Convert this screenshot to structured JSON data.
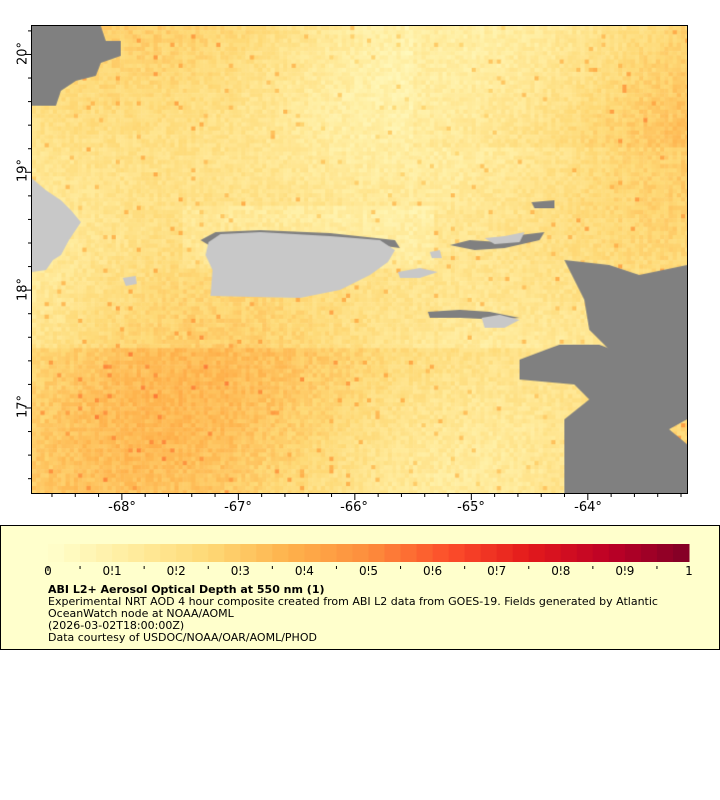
{
  "map": {
    "lat_labels": [
      "20°",
      "19°",
      "18°",
      "17°"
    ],
    "lat_values": [
      20,
      19,
      18,
      17
    ],
    "lon_labels": [
      "-68°",
      "-67°",
      "-66°",
      "-65°",
      "-64°"
    ],
    "lon_values": [
      -68,
      -67,
      -66,
      -65,
      -64
    ],
    "lon_range": [
      -68.78,
      -63.14
    ],
    "lat_range": [
      16.27,
      20.25
    ],
    "land_color": "#c8c8c8",
    "nodata_color": "#808080"
  },
  "legend": {
    "tick_labels": [
      "0",
      "0.1",
      "0.2",
      "0.3",
      "0.4",
      "0.5",
      "0.6",
      "0.7",
      "0.8",
      "0.9",
      "1"
    ],
    "range": [
      0,
      1
    ],
    "colormap": "YlOrRd",
    "title": "ABI L2+ Aerosol Optical Depth at 550 nm (1)",
    "line1": "Experimental NRT AOD 4 hour composite created from ABI L2 data from GOES-19. Fields generated by Atlantic",
    "line2": "OceanWatch node at NOAA/AOML",
    "time": "(2026-03-02T18:00:00Z)",
    "credit": "Data courtesy of USDOC/NOAA/OAR/AOML/PHOD",
    "background": "#ffffcc"
  }
}
